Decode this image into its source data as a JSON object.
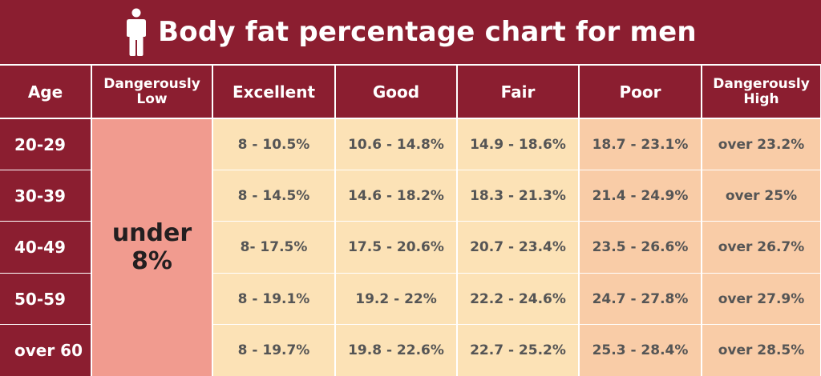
{
  "title": "Body fat percentage chart for men",
  "title_icon": "person-icon",
  "colors": {
    "header_bg": "#8b1e30",
    "header_text": "#ffffff",
    "dangerously_low_bg": "#f19b8f",
    "mid_bg": "#fce2b6",
    "poor_bg": "#f9cca7",
    "value_text": "#555555"
  },
  "chart_data": {
    "type": "table",
    "title": "Body fat percentage chart for men",
    "columns": [
      "Age",
      "Dangerously Low",
      "Excellent",
      "Good",
      "Fair",
      "Poor",
      "Dangerously High"
    ],
    "header_lines": [
      [
        "Age"
      ],
      [
        "Dangerously",
        "Low"
      ],
      [
        "Excellent"
      ],
      [
        "Good"
      ],
      [
        "Fair"
      ],
      [
        "Poor"
      ],
      [
        "Dangerously",
        "High"
      ]
    ],
    "dangerously_low_all_ages": [
      "under",
      "8%"
    ],
    "rows": [
      {
        "age": "20-29",
        "excellent": "8 - 10.5%",
        "good": "10.6 - 14.8%",
        "fair": "14.9 - 18.6%",
        "poor": "18.7 - 23.1%",
        "dangerously_high": "over 23.2%"
      },
      {
        "age": "30-39",
        "excellent": "8 - 14.5%",
        "good": "14.6 - 18.2%",
        "fair": "18.3 - 21.3%",
        "poor": "21.4 - 24.9%",
        "dangerously_high": "over 25%"
      },
      {
        "age": "40-49",
        "excellent": "8- 17.5%",
        "good": "17.5 - 20.6%",
        "fair": "20.7 - 23.4%",
        "poor": "23.5 - 26.6%",
        "dangerously_high": "over 26.7%"
      },
      {
        "age": "50-59",
        "excellent": "8 - 19.1%",
        "good": "19.2 - 22%",
        "fair": "22.2 - 24.6%",
        "poor": "24.7 - 27.8%",
        "dangerously_high": "over 27.9%"
      },
      {
        "age": "over 60",
        "excellent": "8 - 19.7%",
        "good": "19.8 - 22.6%",
        "fair": "22.7 - 25.2%",
        "poor": "25.3 - 28.4%",
        "dangerously_high": "over 28.5%"
      }
    ]
  }
}
